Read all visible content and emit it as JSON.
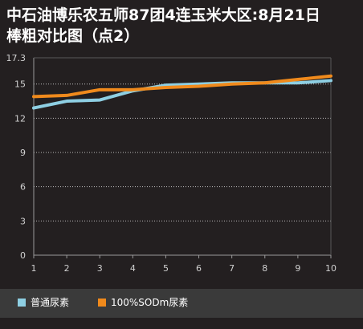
{
  "chart_data": {
    "type": "line",
    "title": "中石油博乐农五师87团4连玉米大区:8月21日\n棒粗对比图（点2）",
    "xlabel": "",
    "ylabel": "",
    "x": [
      1,
      2,
      3,
      4,
      5,
      6,
      7,
      8,
      9,
      10
    ],
    "x_tick_labels": [
      "1",
      "2",
      "3",
      "4",
      "5",
      "6",
      "7",
      "8",
      "9",
      "10"
    ],
    "ylim": [
      0,
      17.3
    ],
    "y_tick_labels": [
      "0",
      "3",
      "6",
      "9",
      "12",
      "15",
      "17.3"
    ],
    "y_ticks": [
      0,
      3,
      6,
      9,
      12,
      15,
      17.3
    ],
    "grid": true,
    "legend_position": "bottom",
    "series": [
      {
        "name": "普通尿素",
        "color": "#8ecfe3",
        "values": [
          12.9,
          13.5,
          13.6,
          14.4,
          14.9,
          15.0,
          15.1,
          15.1,
          15.1,
          15.3
        ]
      },
      {
        "name": "100%SODm尿素",
        "color": "#f08a1c",
        "values": [
          13.9,
          14.0,
          14.5,
          14.5,
          14.7,
          14.8,
          15.0,
          15.1,
          15.4,
          15.7
        ]
      }
    ]
  }
}
